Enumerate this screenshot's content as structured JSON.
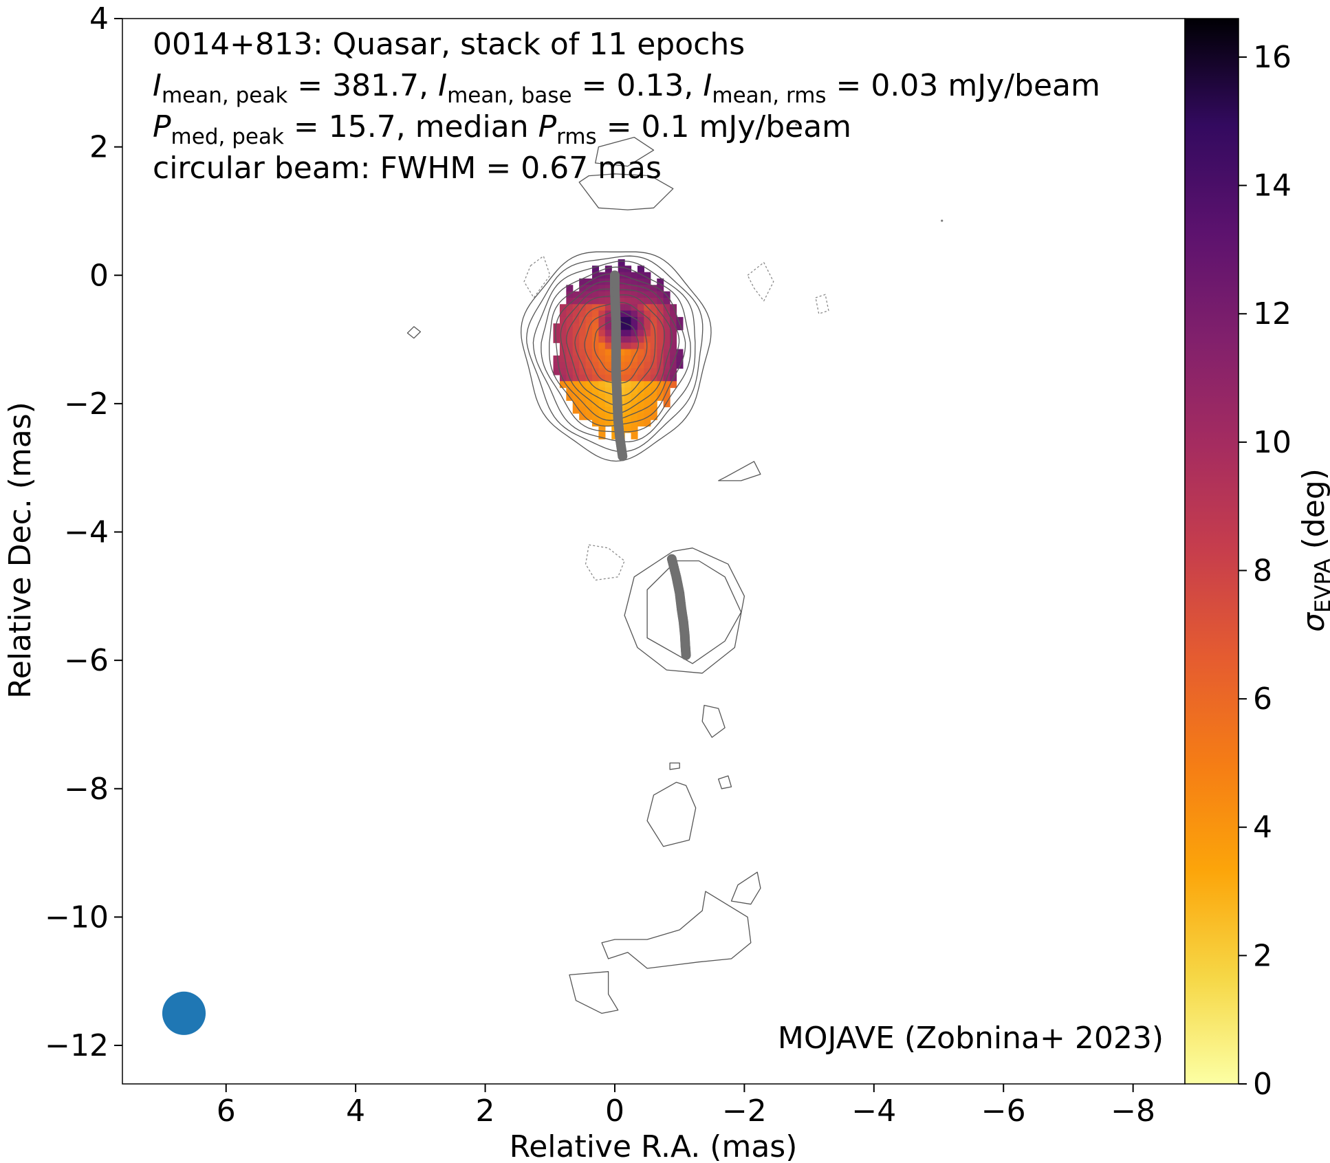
{
  "chart_data": {
    "type": "heatmap",
    "info_lines": [
      "0014+813: Quasar, stack of 11 epochs",
      "I mean, peak = 381.7, I mean, base = 0.13, I mean, rms = 0.03 mJy/beam",
      "P med, peak = 15.7, median P rms = 0.1 mJy/beam",
      "circular beam: FWHM = 0.67 mas"
    ],
    "info_rich": [
      [
        {
          "t": "0014+813: Quasar, stack of 11 epochs"
        }
      ],
      [
        {
          "t": "I",
          "i": true
        },
        {
          "t": "mean, peak",
          "sub": true
        },
        {
          "t": " = 381.7, "
        },
        {
          "t": "I",
          "i": true
        },
        {
          "t": "mean, base",
          "sub": true
        },
        {
          "t": " = 0.13, "
        },
        {
          "t": "I",
          "i": true
        },
        {
          "t": "mean, rms",
          "sub": true
        },
        {
          "t": " = 0.03 mJy/beam"
        }
      ],
      [
        {
          "t": "P",
          "i": true
        },
        {
          "t": "med, peak",
          "sub": true
        },
        {
          "t": " = 15.7, median "
        },
        {
          "t": "P",
          "i": true
        },
        {
          "t": "rms",
          "sub": true
        },
        {
          "t": " = 0.1 mJy/beam"
        }
      ],
      [
        {
          "t": "circular beam: FWHM = 0.67 mas"
        }
      ]
    ],
    "credit": "MOJAVE (Zobnina+ 2023)",
    "xlabel": "Relative R.A. (mas)",
    "ylabel": "Relative Dec. (mas)",
    "colorbar_label": "σEVPA (deg)",
    "colorbar_label_parts": {
      "symbol": "σ",
      "sub": "EVPA",
      "unit": " (deg)"
    },
    "xlim": [
      7.6,
      -8.8
    ],
    "ylim": [
      -12.6,
      4
    ],
    "xticks": [
      6,
      4,
      2,
      0,
      -2,
      -4,
      -6,
      -8
    ],
    "xtick_labels": [
      "6",
      "4",
      "2",
      "0",
      "−2",
      "−4",
      "−6",
      "−8"
    ],
    "yticks": [
      4,
      2,
      0,
      -2,
      -4,
      -6,
      -8,
      -10,
      -12
    ],
    "ytick_labels": [
      "4",
      "2",
      "0",
      "−2",
      "−4",
      "−6",
      "−8",
      "−10",
      "−12"
    ],
    "colorbar_range": [
      0,
      16.6
    ],
    "colorbar_ticks": [
      0,
      2,
      4,
      6,
      8,
      10,
      12,
      14,
      16
    ],
    "colorbar_tick_labels": [
      "0",
      "2",
      "4",
      "6",
      "8",
      "10",
      "12",
      "14",
      "16"
    ],
    "colormap": "inferno_r",
    "beam": {
      "x": 6.65,
      "y": -11.5,
      "fwhm_mas": 0.67,
      "color": "#1f77b4"
    },
    "ridgeline_color": "#707070",
    "contour_color": "#555555",
    "ridgelines": [
      {
        "x": [
          0.0,
          0.0,
          -0.01,
          -0.02,
          -0.02,
          -0.02,
          -0.02,
          -0.03,
          -0.04,
          -0.05,
          -0.08,
          -0.12
        ],
        "y": [
          0.0,
          -0.25,
          -0.5,
          -0.75,
          -1.0,
          -1.25,
          -1.5,
          -1.75,
          -2.0,
          -2.25,
          -2.55,
          -2.82
        ]
      },
      {
        "x": [
          -0.88,
          -0.95,
          -1.0,
          -1.03,
          -1.06,
          -1.08,
          -1.09,
          -1.1
        ],
        "y": [
          -4.42,
          -4.7,
          -4.95,
          -5.2,
          -5.4,
          -5.6,
          -5.78,
          -5.92
        ]
      }
    ],
    "polarization_region": {
      "description": "EVPA uncertainty map (sigma_EVPA) over core region",
      "center": [
        -0.05,
        -1.05
      ],
      "values_range": [
        1,
        16.6
      ],
      "peak": {
        "x": -0.15,
        "y": -0.75,
        "value": 16.6
      }
    },
    "core_contours": {
      "center": [
        -0.02,
        -1.05
      ],
      "levels": [
        {
          "rx": 1.45,
          "ry_up": 1.45,
          "ry_down": 1.75
        },
        {
          "rx": 1.35,
          "ry_up": 1.35,
          "ry_down": 1.62
        },
        {
          "rx": 1.25,
          "ry_up": 1.25,
          "ry_down": 1.5
        },
        {
          "rx": 1.15,
          "ry_up": 1.15,
          "ry_down": 1.38
        },
        {
          "rx": 1.05,
          "ry_up": 1.05,
          "ry_down": 1.27
        },
        {
          "rx": 0.95,
          "ry_up": 0.95,
          "ry_down": 1.16
        },
        {
          "rx": 0.85,
          "ry_up": 0.85,
          "ry_down": 1.05
        },
        {
          "rx": 0.75,
          "ry_up": 0.75,
          "ry_down": 0.93
        },
        {
          "rx": 0.62,
          "ry_up": 0.62,
          "ry_down": 0.8
        },
        {
          "rx": 0.48,
          "ry_up": 0.48,
          "ry_down": 0.62
        },
        {
          "rx": 0.34,
          "ry_up": 0.34,
          "ry_down": 0.45
        }
      ]
    },
    "blobs": [
      {
        "x": [
          0.55,
          0.25,
          -0.2,
          -0.6,
          -0.9,
          -0.55,
          0.0,
          0.4,
          0.55
        ],
        "y": [
          1.45,
          1.05,
          1.02,
          1.05,
          1.35,
          1.55,
          1.58,
          1.55,
          1.45
        ],
        "dashed": false
      },
      {
        "x": [
          0.3,
          -0.2,
          -0.6,
          -0.3,
          0.25,
          0.3
        ],
        "y": [
          1.75,
          1.7,
          1.95,
          2.15,
          2.0,
          1.75
        ],
        "dashed": false
      },
      {
        "x": [
          1.3,
          1.1,
          1.0,
          1.25,
          1.4,
          1.3
        ],
        "y": [
          0.15,
          0.3,
          0.0,
          -0.35,
          -0.1,
          0.15
        ],
        "dashed": true
      },
      {
        "x": [
          -2.05,
          -2.3,
          -2.45,
          -2.3,
          -2.15,
          -2.05
        ],
        "y": [
          0.0,
          0.2,
          -0.1,
          -0.4,
          -0.2,
          0.0
        ],
        "dashed": true
      },
      {
        "x": [
          -3.1,
          -3.25,
          -3.3,
          -3.15,
          -3.1
        ],
        "y": [
          -0.35,
          -0.3,
          -0.55,
          -0.6,
          -0.35
        ],
        "dashed": true
      },
      {
        "x": [
          3.1,
          3.0,
          3.1,
          3.2,
          3.1
        ],
        "y": [
          -0.8,
          -0.88,
          -0.98,
          -0.9,
          -0.8
        ],
        "dashed": false
      },
      {
        "x": [
          -1.7,
          -2.15,
          -2.25,
          -1.95,
          -1.6,
          -1.7
        ],
        "y": [
          -3.15,
          -2.9,
          -3.1,
          -3.2,
          -3.2,
          -3.15
        ],
        "dashed": false
      },
      {
        "x": [
          0.4,
          0.1,
          -0.15,
          -0.05,
          0.3,
          0.45,
          0.4
        ],
        "y": [
          -4.2,
          -4.25,
          -4.45,
          -4.7,
          -4.75,
          -4.5,
          -4.2
        ],
        "dashed": true
      },
      {
        "x": [
          -0.95,
          -0.5,
          -0.5,
          -1.2,
          -1.7,
          -1.95,
          -1.7,
          -1.3,
          -0.95
        ],
        "y": [
          -4.45,
          -4.9,
          -5.65,
          -6.05,
          -5.7,
          -5.25,
          -4.7,
          -4.45,
          -4.45
        ],
        "dashed": false
      },
      {
        "x": [
          -0.9,
          -0.3,
          -0.15,
          -0.35,
          -0.8,
          -1.35,
          -1.85,
          -2.0,
          -1.75,
          -1.2,
          -0.9
        ],
        "y": [
          -4.3,
          -4.7,
          -5.3,
          -5.8,
          -6.15,
          -6.2,
          -5.8,
          -5.0,
          -4.5,
          -4.25,
          -4.3
        ],
        "dashed": false
      },
      {
        "x": [
          -1.38,
          -1.6,
          -1.7,
          -1.5,
          -1.35,
          -1.38
        ],
        "y": [
          -6.7,
          -6.75,
          -7.05,
          -7.2,
          -6.95,
          -6.7
        ],
        "dashed": false
      },
      {
        "x": [
          -0.85,
          -1.0,
          -1.0,
          -0.85,
          -0.85
        ],
        "y": [
          -7.6,
          -7.6,
          -7.68,
          -7.7,
          -7.6
        ],
        "dashed": false
      },
      {
        "x": [
          -1.6,
          -1.75,
          -1.8,
          -1.65,
          -1.6
        ],
        "y": [
          -7.85,
          -7.8,
          -7.97,
          -8.0,
          -7.85
        ],
        "dashed": false
      },
      {
        "x": [
          -0.95,
          -0.6,
          -0.5,
          -0.75,
          -1.15,
          -1.25,
          -1.1,
          -0.95
        ],
        "y": [
          -7.9,
          -8.1,
          -8.5,
          -8.9,
          -8.8,
          -8.3,
          -7.95,
          -7.9
        ],
        "dashed": false
      },
      {
        "x": [
          -2.2,
          -1.9,
          -1.8,
          -2.1,
          -2.25,
          -2.2
        ],
        "y": [
          -9.3,
          -9.5,
          -9.75,
          -9.8,
          -9.55,
          -9.3
        ],
        "dashed": false
      },
      {
        "x": [
          -1.4,
          -2.05,
          -2.1,
          -1.8,
          -1.3,
          -0.9,
          -0.5,
          -0.2,
          0.1,
          0.2,
          0.0,
          -0.5,
          -1.0,
          -1.35,
          -1.4
        ],
        "y": [
          -9.6,
          -10.0,
          -10.4,
          -10.65,
          -10.7,
          -10.75,
          -10.8,
          -10.55,
          -10.65,
          -10.4,
          -10.35,
          -10.35,
          -10.2,
          -9.9,
          -9.6
        ],
        "dashed": false
      },
      {
        "x": [
          0.7,
          0.1,
          0.1,
          -0.05,
          0.2,
          0.6,
          0.7
        ],
        "y": [
          -10.9,
          -10.85,
          -11.2,
          -11.45,
          -11.5,
          -11.3,
          -10.9
        ],
        "dashed": false
      }
    ],
    "dots": [
      {
        "x": -5.05,
        "y": 0.85
      },
      {
        "x": -2.8,
        "y": 2.35
      }
    ]
  }
}
